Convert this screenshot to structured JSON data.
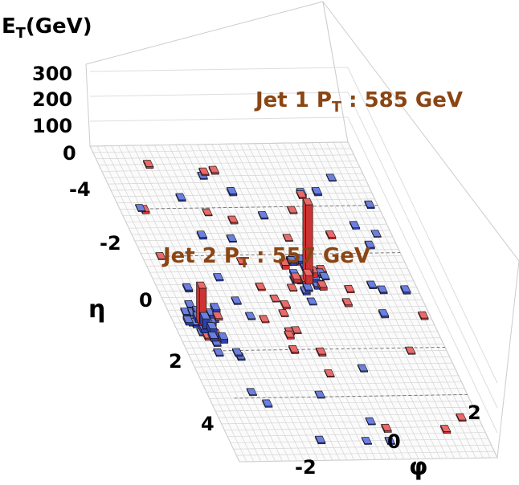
{
  "chart_data": {
    "type": "lego",
    "z_axis": {
      "label_main": "E",
      "label_sub": "T",
      "label_unit": "(GeV)",
      "ticks": [
        "300",
        "200",
        "100",
        "0"
      ]
    },
    "eta_axis": {
      "label": "η",
      "ticks": [
        "-4",
        "-2",
        "0",
        "2",
        "4"
      ],
      "range": [
        -5,
        5
      ]
    },
    "phi_axis": {
      "label": "φ",
      "ticks": [
        "-2",
        "0",
        "2"
      ],
      "range": [
        -3.1416,
        3.1416
      ]
    },
    "annotations": [
      {
        "id": "jet1",
        "prefix": "Jet 1 P",
        "sub": "T",
        "suffix": " : 585 GeV"
      },
      {
        "id": "jet2",
        "prefix": "Jet 2 P",
        "sub": "T",
        "suffix": " : 557 GeV"
      }
    ],
    "towers": [
      {
        "eta": -0.9,
        "phi": 0.55,
        "et": 300,
        "color": "red"
      },
      {
        "eta": -0.75,
        "phi": 0.5,
        "et": 35,
        "color": "red"
      },
      {
        "eta": -1.0,
        "phi": 0.6,
        "et": 25,
        "color": "red"
      },
      {
        "eta": 0.5,
        "phi": -2.55,
        "et": 150,
        "color": "red"
      },
      {
        "eta": 0.6,
        "phi": -2.5,
        "et": 40,
        "color": "blue"
      },
      {
        "eta": 0.8,
        "phi": -2.4,
        "et": 25,
        "color": "blue"
      },
      {
        "eta": 1.0,
        "phi": -2.45,
        "et": 12,
        "color": "blue"
      }
    ],
    "grid": true
  },
  "colors": {
    "em": "#2e3fa8",
    "had": "#cc3333",
    "jet": "#8b4513"
  }
}
